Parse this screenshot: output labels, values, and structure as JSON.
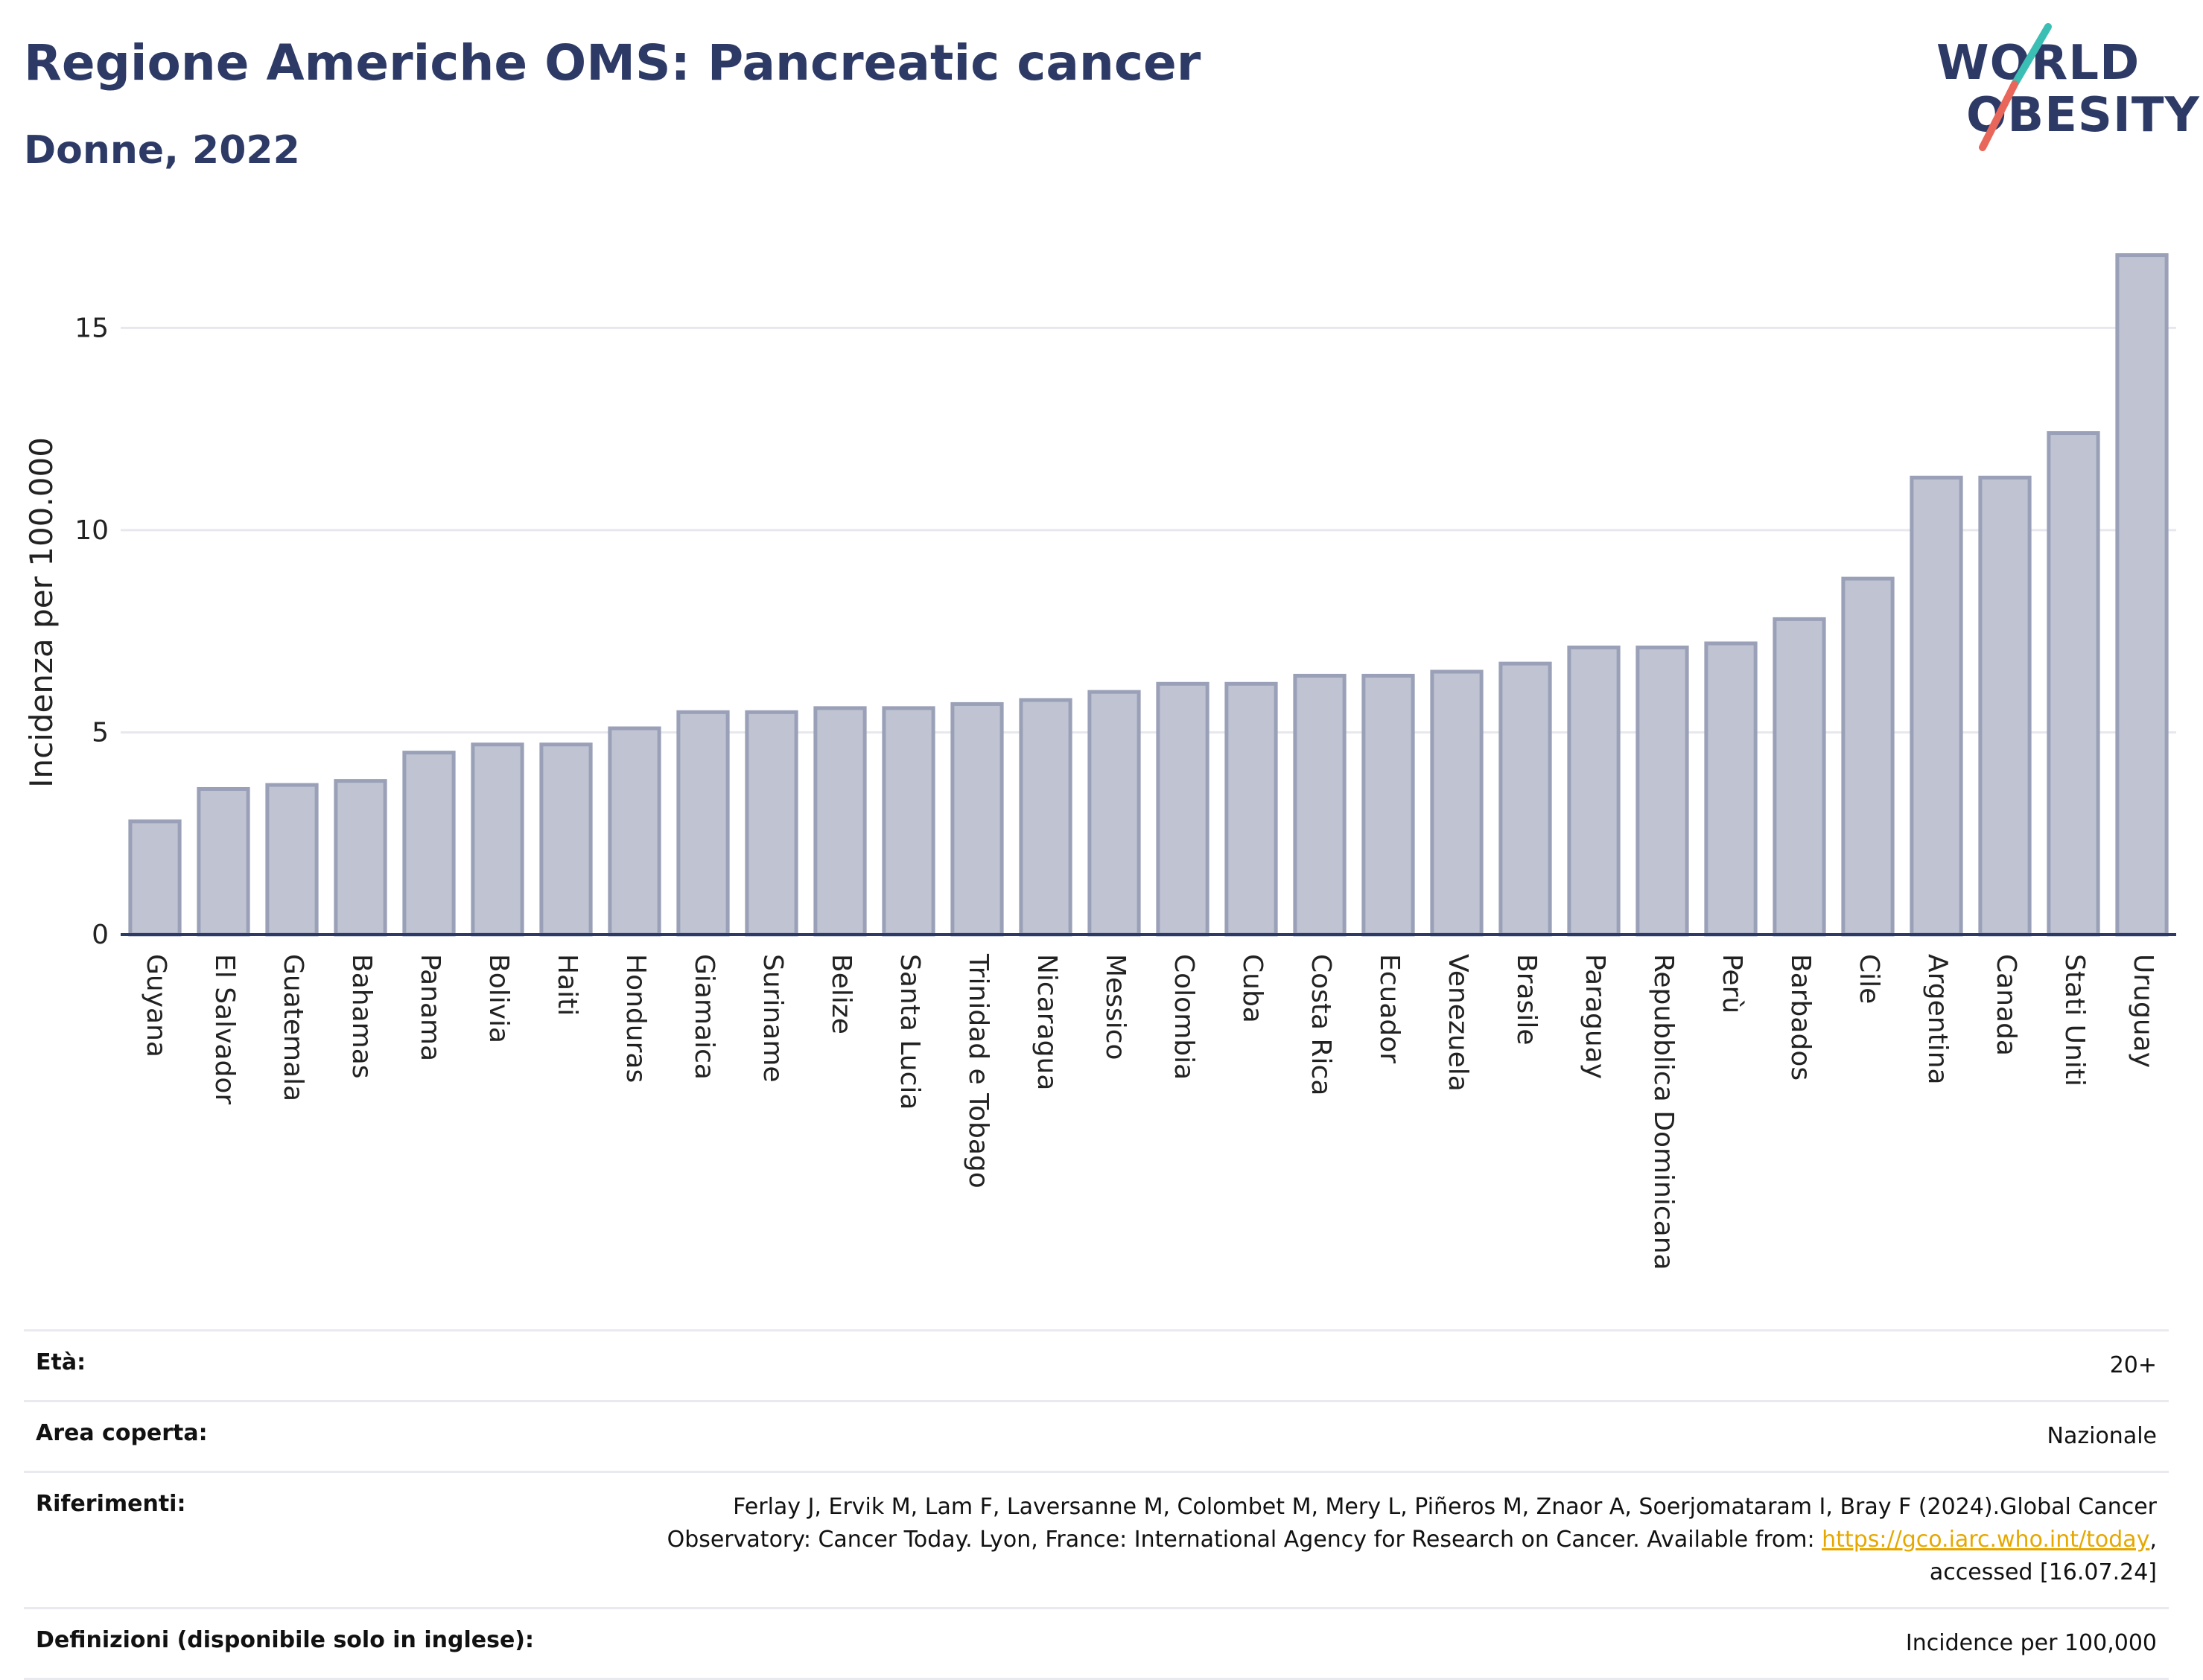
{
  "title": "Regione Americhe OMS: Pancreatic cancer",
  "subtitle": "Donne, 2022",
  "logo": {
    "line1": "WORLD",
    "line2": "OBESITY",
    "slash_colors": [
      "#3bbfb4",
      "#e8675a"
    ]
  },
  "colors": {
    "bar_fill": "#bfc3d2",
    "bar_stroke": "#9aa0b7",
    "title": "#2d3a66",
    "link": "#e6a800"
  },
  "chart_data": {
    "type": "bar",
    "ylabel": "Incidenza per 100.000",
    "xlabel": "",
    "ylim": [
      0,
      17.4
    ],
    "yticks": [
      0,
      5,
      10,
      15
    ],
    "grid": true,
    "categories": [
      "Guyana",
      "El Salvador",
      "Guatemala",
      "Bahamas",
      "Panama",
      "Bolivia",
      "Haiti",
      "Honduras",
      "Giamaica",
      "Suriname",
      "Belize",
      "Santa Lucia",
      "Trinidad e Tobago",
      "Nicaragua",
      "Messico",
      "Colombia",
      "Cuba",
      "Costa Rica",
      "Ecuador",
      "Venezuela",
      "Brasile",
      "Paraguay",
      "Repubblica Dominicana",
      "Perù",
      "Barbados",
      "Cile",
      "Argentina",
      "Canada",
      "Stati Uniti",
      "Uruguay"
    ],
    "values": [
      2.8,
      3.6,
      3.7,
      3.8,
      4.5,
      4.7,
      4.7,
      5.1,
      5.5,
      5.5,
      5.6,
      5.6,
      5.7,
      5.8,
      6.0,
      6.2,
      6.2,
      6.4,
      6.4,
      6.5,
      6.7,
      7.1,
      7.1,
      7.2,
      7.8,
      8.8,
      11.3,
      11.3,
      12.4,
      16.8
    ]
  },
  "info": {
    "age_label": "Età:",
    "age_value": "20+",
    "area_label": "Area coperta:",
    "area_value": "Nazionale",
    "ref_label": "Riferimenti:",
    "ref_text_1": "Ferlay J, Ervik M, Lam F, Laversanne M, Colombet M, Mery L, Piñeros M, Znaor A, Soerjomataram I, Bray F (2024).Global Cancer Observatory: Cancer Today. Lyon, France: International Agency for Research on Cancer. Available from: ",
    "ref_link": "https://gco.iarc.who.int/today",
    "ref_text_2": ", accessed [16.07.24]",
    "def_label": "Definizioni (disponibile solo in inglese):",
    "def_value": "Incidence per 100,000"
  }
}
